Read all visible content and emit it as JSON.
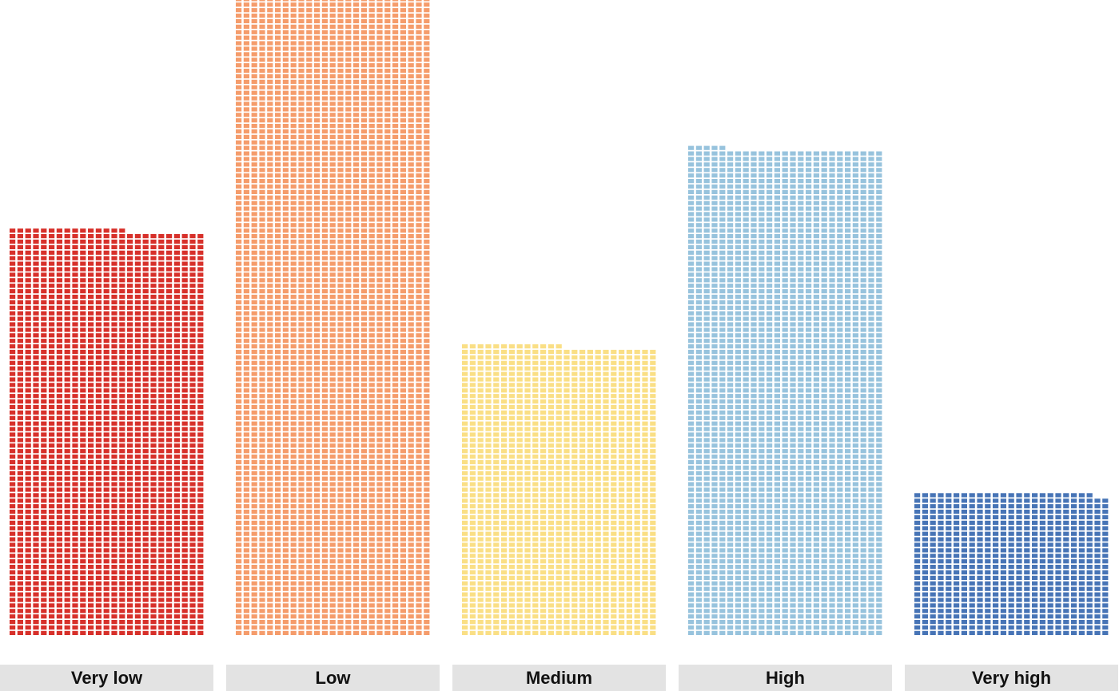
{
  "chart_data": {
    "type": "bar",
    "subtype": "waffle-bar",
    "categories": [
      "Very low",
      "Low",
      "Medium",
      "High",
      "Very high"
    ],
    "values": [
      1840,
      2913,
      1313,
      2205,
      648
    ],
    "units_per_row": 25,
    "colors": [
      "#d7302a",
      "#f59c6b",
      "#fadf85",
      "#97c3dd",
      "#4774b6"
    ],
    "grid": false,
    "legend": "none"
  }
}
